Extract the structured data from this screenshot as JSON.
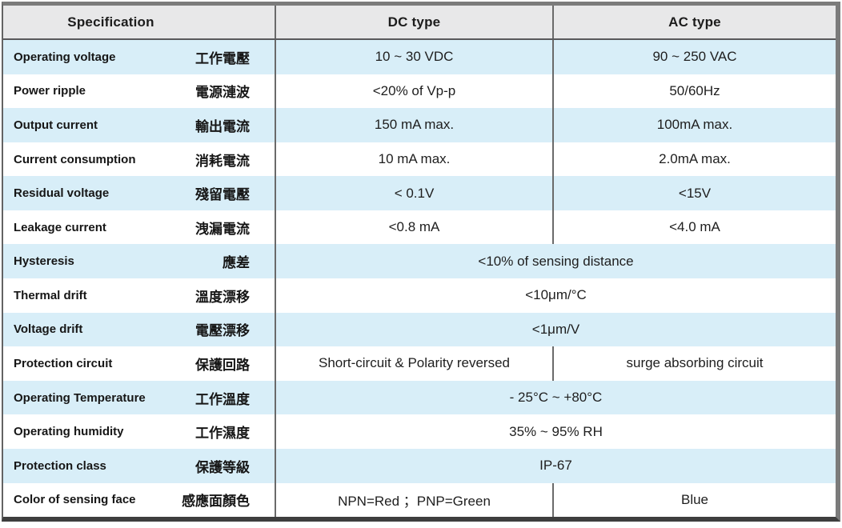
{
  "table": {
    "header": {
      "specification": "Specification",
      "dc_type": "DC type",
      "ac_type": "AC type"
    },
    "rows": [
      {
        "en": "Operating voltage",
        "zh": "工作電壓",
        "dc": "10 ~ 30 VDC",
        "ac": "90 ~ 250 VAC"
      },
      {
        "en": "Power ripple",
        "zh": "電源漣波",
        "dc": "<20% of Vp-p",
        "ac": "50/60Hz"
      },
      {
        "en": "Output current",
        "zh": "輸出電流",
        "dc": "150 mA max.",
        "ac": "100mA max."
      },
      {
        "en": "Current consumption",
        "zh": "消耗電流",
        "dc": "10 mA max.",
        "ac": "2.0mA max."
      },
      {
        "en": "Residual voltage",
        "zh": "殘留電壓",
        "dc": "< 0.1V",
        "ac": "<15V"
      },
      {
        "en": "Leakage current",
        "zh": "洩漏電流",
        "dc": "<0.8 mA",
        "ac": "<4.0 mA"
      },
      {
        "en": "Hysteresis",
        "zh": "應差",
        "merged": "<10% of sensing distance"
      },
      {
        "en": "Thermal drift",
        "zh": "溫度漂移",
        "merged": "<10μm/°C"
      },
      {
        "en": "Voltage drift",
        "zh": "電壓漂移",
        "merged": "<1μm/V"
      },
      {
        "en": "Protection circuit",
        "zh": "保護回路",
        "dc": "Short-circuit & Polarity reversed",
        "ac": "surge absorbing circuit"
      },
      {
        "en": "Operating Temperature",
        "zh": "工作溫度",
        "merged": "- 25°C ~ +80°C"
      },
      {
        "en": "Operating humidity",
        "zh": "工作濕度",
        "merged": "35% ~ 95% RH"
      },
      {
        "en": "Protection class",
        "zh": "保護等級",
        "merged": "IP-67"
      },
      {
        "en": "Color of sensing face",
        "zh": "感應面顏色",
        "dc": "NPN=Red ；PNP=Green",
        "ac": "Blue"
      }
    ]
  },
  "colors": {
    "row_alt_blue": "#d8eef8",
    "row_white": "#ffffff",
    "header_bg": "#e8e8e9",
    "frame_gray": "#7b7b7b",
    "frame_bottom_dark": "#3e3e3e",
    "grid_line": "#6a6a6a",
    "text": "#161616"
  }
}
